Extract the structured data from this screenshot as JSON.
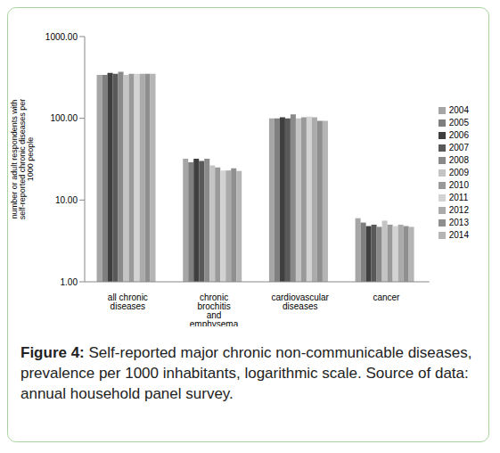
{
  "chart_data": {
    "type": "bar",
    "caption_label": "Figure 4:",
    "caption": "Self-reported major chronic non-communicable diseases, prevalence per 1000 inhabitants, logarithmic scale. Source of data: annual household panel survey.",
    "y_label": "number or adult respondents with self-reported chronic diseases per 1000 people",
    "categories": [
      "all chronic diseases",
      "chronic brochitis and emphysema",
      "cardiovascular diseases",
      "cancer"
    ],
    "series": [
      {
        "name": "2004",
        "color": "#a6a6a6",
        "values": [
          340,
          32,
          100,
          6.0
        ]
      },
      {
        "name": "2005",
        "color": "#7f7f7f",
        "values": [
          340,
          29,
          100,
          5.3
        ]
      },
      {
        "name": "2006",
        "color": "#3f3f3f",
        "values": [
          360,
          32,
          103,
          4.8
        ]
      },
      {
        "name": "2007",
        "color": "#595959",
        "values": [
          350,
          30,
          100,
          5.0
        ]
      },
      {
        "name": "2008",
        "color": "#8a8a8a",
        "values": [
          370,
          32,
          112,
          4.7
        ]
      },
      {
        "name": "2009",
        "color": "#c4c4c4",
        "values": [
          340,
          26.5,
          100,
          5.6
        ]
      },
      {
        "name": "2010",
        "color": "#9a9a9a",
        "values": [
          350,
          25,
          103,
          5.0
        ]
      },
      {
        "name": "2011",
        "color": "#d3d3d3",
        "values": [
          350,
          23,
          105,
          4.8
        ]
      },
      {
        "name": "2012",
        "color": "#ababab",
        "values": [
          350,
          23,
          103,
          5.0
        ]
      },
      {
        "name": "2013",
        "color": "#8f8f8f",
        "values": [
          350,
          24.5,
          93,
          4.8
        ]
      },
      {
        "name": "2014",
        "color": "#b5b5b5",
        "values": [
          350,
          22.7,
          93,
          4.7
        ]
      }
    ],
    "log": "y",
    "ylim": [
      1,
      1000
    ],
    "yticks": [
      {
        "value": 1,
        "label": "1.00"
      },
      {
        "value": 10,
        "label": "10.00"
      },
      {
        "value": 100,
        "label": "100.00"
      },
      {
        "value": 1000,
        "label": "1000.00"
      }
    ],
    "grid": false,
    "legend": "right"
  }
}
